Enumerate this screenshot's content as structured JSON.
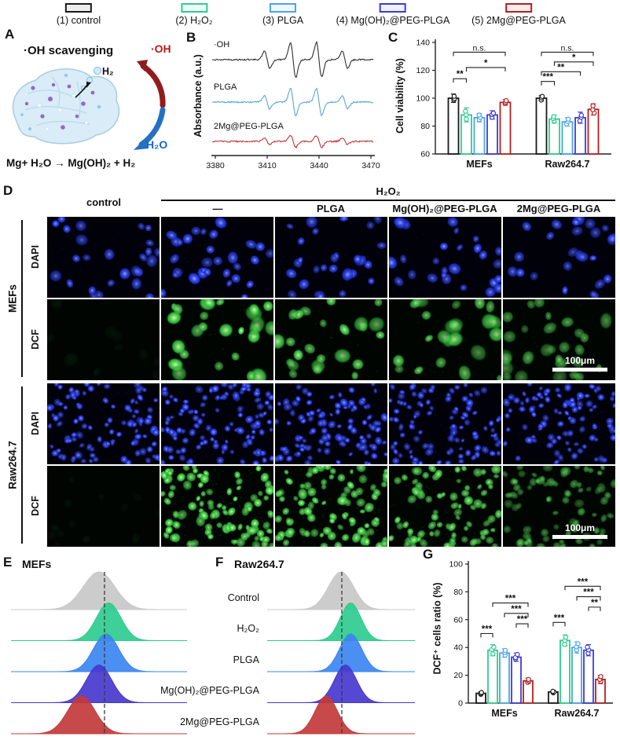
{
  "legend": {
    "items": [
      {
        "label": "(1) control",
        "color": "#1a1a1a"
      },
      {
        "label": "(2) H₂O₂",
        "color": "#2ecc8f"
      },
      {
        "label": "(3) PLGA",
        "color": "#4da3e8"
      },
      {
        "label": "(4) Mg(OH)₂@PEG-PLGA",
        "color": "#3c3cd4"
      },
      {
        "label": "(5) 2Mg@PEG-PLGA",
        "color": "#b42020"
      }
    ]
  },
  "panelA": {
    "label": "A",
    "title": "·OH scavenging",
    "h2": "H₂",
    "oh": "·OH",
    "h2o": "H₂O",
    "reaction": "Mg+ H₂O → Mg(OH)₂ + H₂",
    "oh_color": "#c01616",
    "h2o_color": "#1565c8"
  },
  "panelB": {
    "label": "B"
  },
  "panelC": {
    "label": "C"
  },
  "panelD": {
    "label": "D",
    "col_control": "control",
    "treatment_header": "H₂O₂",
    "sub_columns": [
      "—",
      "PLGA",
      "Mg(OH)₂@PEG-PLGA",
      "2Mg@PEG-PLGA"
    ],
    "groups": [
      {
        "name": "MEFs",
        "stains": [
          "DAPI",
          "DCF"
        ]
      },
      {
        "name": "Raw264.7",
        "stains": [
          "DAPI",
          "DCF"
        ]
      }
    ],
    "scalebar_label": "100μm",
    "micrograph_rows": [
      {
        "stain": "dapi",
        "cells": [
          26,
          30,
          28,
          27,
          25
        ],
        "intensity": [
          1,
          1,
          0.95,
          1,
          0.95
        ],
        "rmin": 4.5,
        "rmax": 8
      },
      {
        "stain": "dcf",
        "cells": [
          10,
          26,
          24,
          23,
          28
        ],
        "intensity": [
          0.06,
          1,
          0.92,
          0.8,
          0.62
        ],
        "rmin": 5.5,
        "rmax": 11
      },
      {
        "stain": "dapi",
        "cells": [
          105,
          115,
          108,
          102,
          96
        ],
        "intensity": [
          1,
          1,
          1,
          0.95,
          1
        ],
        "rmin": 3,
        "rmax": 5.2
      },
      {
        "stain": "dcf",
        "cells": [
          14,
          95,
          88,
          84,
          78
        ],
        "intensity": [
          0.05,
          1,
          0.95,
          0.88,
          0.55
        ],
        "rmin": 3.5,
        "rmax": 6.5
      }
    ]
  },
  "panelE": {
    "label": "E",
    "title": "MEFs"
  },
  "panelF": {
    "label": "F",
    "title": "Raw264.7"
  },
  "panelG": {
    "label": "G"
  },
  "chart_data": [
    {
      "id": "esr-spectra",
      "type": "line",
      "ylabel": "Absorbance (a.u.)",
      "xlim": [
        3380,
        3470
      ],
      "xticks": [
        3380,
        3410,
        3440,
        3470
      ],
      "peak_centers": [
        3410,
        3425,
        3440,
        3455
      ],
      "peak_ratios": [
        1,
        2,
        2,
        1
      ],
      "series": [
        {
          "name": "·OH",
          "color": "#2f2f2f",
          "amplitude": 1.0
        },
        {
          "name": "PLGA",
          "color": "#5aa3dc",
          "amplitude": 0.78
        },
        {
          "name": "2Mg@PEG-PLGA",
          "color": "#c23434",
          "amplitude": 0.34
        }
      ]
    },
    {
      "id": "cell-viability",
      "type": "bar",
      "ylabel": "Cell viability (%)",
      "ylim": [
        60,
        140
      ],
      "yticks": [
        60,
        80,
        100,
        120,
        140
      ],
      "groups": [
        "MEFs",
        "Raw264.7"
      ],
      "series_labels": [
        "control",
        "H₂O₂",
        "PLGA",
        "Mg(OH)₂@PEG-PLGA",
        "2Mg@PEG-PLGA"
      ],
      "colors": [
        "#1a1a1a",
        "#2ecc8f",
        "#4da3e8",
        "#3c3cd4",
        "#b42020"
      ],
      "values": [
        [
          100,
          88,
          86,
          88,
          97
        ],
        [
          100,
          85,
          83,
          86,
          92
        ]
      ],
      "errors": [
        [
          3,
          5,
          3,
          3,
          2
        ],
        [
          2,
          3,
          3,
          4,
          4
        ]
      ],
      "brackets": [
        {
          "group": 0,
          "from": 0,
          "to": 4,
          "label": "n.s.",
          "level": 133
        },
        {
          "group": 0,
          "from": 1,
          "to": 4,
          "label": "*",
          "level": 122
        },
        {
          "group": 0,
          "from": 0,
          "to": 1,
          "label": "**",
          "level": 114
        },
        {
          "group": 1,
          "from": 0,
          "to": 4,
          "label": "n.s.",
          "level": 133
        },
        {
          "group": 1,
          "from": 1,
          "to": 4,
          "label": "*",
          "level": 126
        },
        {
          "group": 1,
          "from": 0,
          "to": 3,
          "label": "**",
          "level": 119
        },
        {
          "group": 1,
          "from": 0,
          "to": 1,
          "label": "***",
          "level": 112
        }
      ]
    },
    {
      "id": "ridge-mefs",
      "type": "area",
      "title": "MEFs",
      "dashed_line_x": 0.53,
      "rows": [
        {
          "label": "Control",
          "color": "#c8c8c8",
          "mu": 0.5,
          "sigma": 0.09
        },
        {
          "label": "H₂O₂",
          "color": "#2ecc8f",
          "mu": 0.555,
          "sigma": 0.07
        },
        {
          "label": "PLGA",
          "color": "#3b86f0",
          "mu": 0.54,
          "sigma": 0.072
        },
        {
          "label": "Mg(OH)₂@PEG-PLGA",
          "color": "#4838cf",
          "mu": 0.5,
          "sigma": 0.072
        },
        {
          "label": "2Mg@PEG-PLGA",
          "color": "#c23a3a",
          "mu": 0.4,
          "sigma": 0.078
        }
      ]
    },
    {
      "id": "ridge-raw264",
      "type": "area",
      "title": "Raw264.7",
      "dashed_line_x": 0.505,
      "rows": [
        {
          "color": "#c8c8c8",
          "mu": 0.5,
          "sigma": 0.085
        },
        {
          "color": "#2ecc8f",
          "mu": 0.565,
          "sigma": 0.07
        },
        {
          "color": "#3b86f0",
          "mu": 0.565,
          "sigma": 0.075
        },
        {
          "color": "#4838cf",
          "mu": 0.53,
          "sigma": 0.075
        },
        {
          "color": "#c23a3a",
          "mu": 0.4,
          "sigma": 0.075
        }
      ]
    },
    {
      "id": "dcf-positive-ratio",
      "type": "bar",
      "ylabel": "DCF⁺ cells ratio (%)",
      "ylim": [
        0,
        100
      ],
      "yticks": [
        0,
        20,
        40,
        60,
        80,
        100
      ],
      "groups": [
        "MEFs",
        "Raw264.7"
      ],
      "series_labels": [
        "control",
        "H₂O₂",
        "PLGA",
        "Mg(OH)₂@PEG-PLGA",
        "2Mg@PEG-PLGA"
      ],
      "colors": [
        "#1a1a1a",
        "#2ecc8f",
        "#4da3e8",
        "#3c3cd4",
        "#b42020"
      ],
      "values": [
        [
          7,
          38,
          36,
          33,
          16
        ],
        [
          8,
          45,
          40,
          38,
          17
        ]
      ],
      "errors": [
        [
          1,
          4,
          3,
          3,
          2
        ],
        [
          1,
          4,
          4,
          4,
          3
        ]
      ],
      "brackets": [
        {
          "group": 0,
          "from": 0,
          "to": 1,
          "label": "***",
          "level": 50
        },
        {
          "group": 0,
          "from": 1,
          "to": 4,
          "label": "***",
          "level": 72
        },
        {
          "group": 0,
          "from": 2,
          "to": 4,
          "label": "***",
          "level": 64.5
        },
        {
          "group": 0,
          "from": 3,
          "to": 4,
          "label": "***",
          "level": 57
        },
        {
          "group": 1,
          "from": 0,
          "to": 1,
          "label": "***",
          "level": 58
        },
        {
          "group": 1,
          "from": 1,
          "to": 4,
          "label": "***",
          "level": 84
        },
        {
          "group": 1,
          "from": 2,
          "to": 4,
          "label": "***",
          "level": 76.5
        },
        {
          "group": 1,
          "from": 3,
          "to": 4,
          "label": "**",
          "level": 69
        }
      ]
    }
  ]
}
